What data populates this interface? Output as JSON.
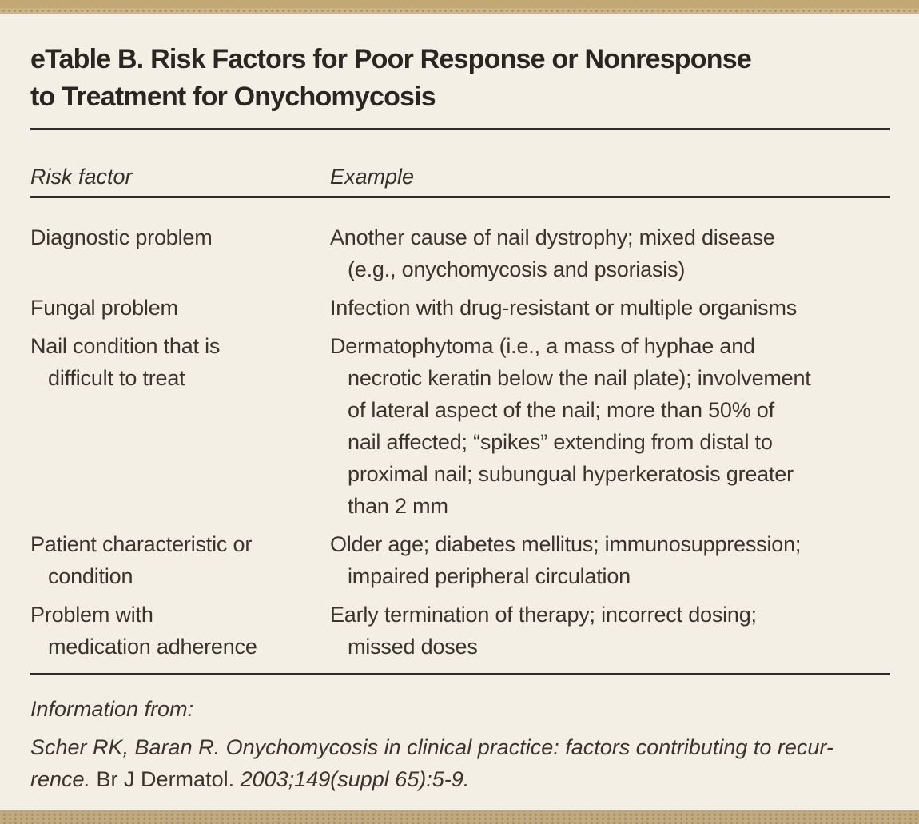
{
  "colors": {
    "page_background": "#f3efe5",
    "border_bar_tan": "#c3a876",
    "border_bar_tan_light": "#ccb383",
    "border_bar_dot": "#8f8577",
    "title_text": "#2b2622",
    "body_text": "#3a342d",
    "rule": "#2e2a25"
  },
  "title_lines": [
    "eTable B. Risk Factors for Poor Response or Nonresponse",
    "to Treatment for Onychomycosis"
  ],
  "table": {
    "header": {
      "risk_factor": "Risk factor",
      "example": "Example"
    },
    "rows": [
      {
        "risk_factor": [
          "Diagnostic problem"
        ],
        "example": [
          "Another cause of nail dystrophy; mixed disease",
          "(e.g., onychomycosis and psoriasis)"
        ]
      },
      {
        "risk_factor": [
          "Fungal problem"
        ],
        "example": [
          "Infection with drug-resistant or multiple organisms"
        ]
      },
      {
        "risk_factor": [
          "Nail condition that is",
          "difficult to treat"
        ],
        "example": [
          "Dermatophytoma (i.e., a mass of hyphae and",
          "necrotic keratin below the nail plate); involvement",
          "of lateral aspect of the nail; more than 50% of",
          "nail affected; “spikes” extending from distal to",
          "proximal nail; subungual hyperkeratosis greater",
          "than 2 mm"
        ]
      },
      {
        "risk_factor": [
          "Patient characteristic or",
          "condition"
        ],
        "example": [
          "Older age; diabetes mellitus; immunosuppression;",
          "impaired peripheral circulation"
        ]
      },
      {
        "risk_factor": [
          "Problem with",
          "medication adherence"
        ],
        "example": [
          "Early termination of therapy; incorrect dosing;",
          "missed doses"
        ]
      }
    ]
  },
  "footer": {
    "info_label": "Information from:",
    "citation": {
      "line1_italic": "Scher RK, Baran R. Onychomycosis in clinical practice: factors contributing to recur-",
      "line2_italic_a": "rence.",
      "line2_roman": " Br J Dermatol. ",
      "line2_italic_b": "2003;149(suppl 65):5-9."
    }
  }
}
